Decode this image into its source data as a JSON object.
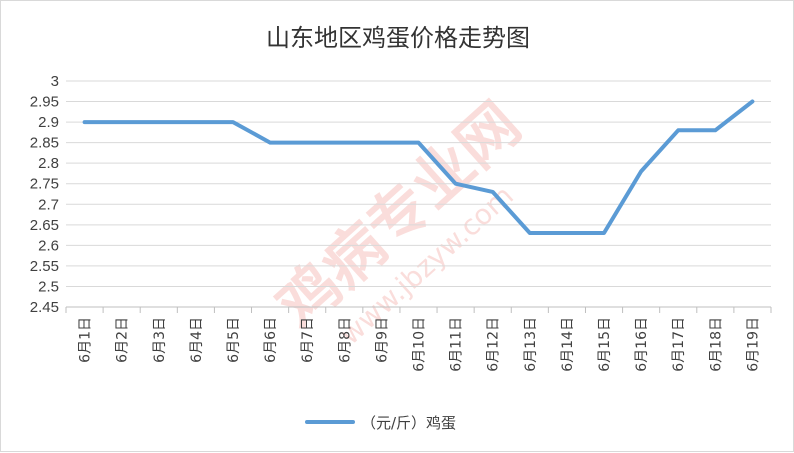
{
  "chart_data": {
    "type": "line",
    "title": "山东地区鸡蛋价格走势图",
    "xlabel": "",
    "ylabel": "",
    "categories": [
      "6月1日",
      "6月2日",
      "6月3日",
      "6月4日",
      "6月5日",
      "6月6日",
      "6月7日",
      "6月8日",
      "6月9日",
      "6月10日",
      "6月11日",
      "6月12日",
      "6月13日",
      "6月14日",
      "6月15日",
      "6月16日",
      "6月17日",
      "6月18日",
      "6月19日"
    ],
    "series": [
      {
        "name": "（元/斤）鸡蛋",
        "color": "#5b9bd5",
        "values": [
          2.9,
          2.9,
          2.9,
          2.9,
          2.9,
          2.85,
          2.85,
          2.85,
          2.85,
          2.85,
          2.75,
          2.73,
          2.63,
          2.63,
          2.63,
          2.78,
          2.88,
          2.88,
          2.95
        ]
      }
    ],
    "ylim": [
      2.45,
      3
    ],
    "yticks": [
      "2.45",
      "2.5",
      "2.55",
      "2.6",
      "2.65",
      "2.7",
      "2.75",
      "2.8",
      "2.85",
      "2.9",
      "2.95",
      "3"
    ],
    "grid": true,
    "legend_position": "bottom"
  },
  "watermark": {
    "text": "鸡病专业网",
    "url": "www.jbzyw.com",
    "color": "#f4b6b0"
  }
}
